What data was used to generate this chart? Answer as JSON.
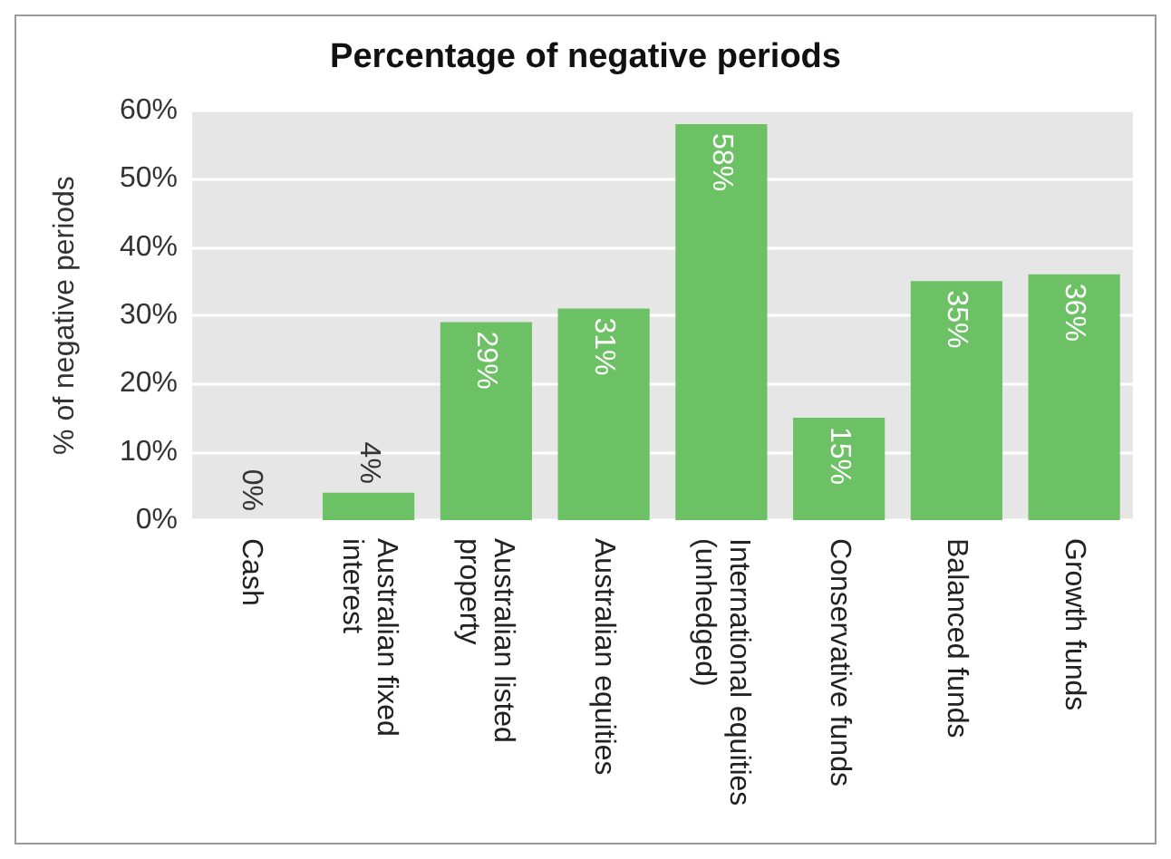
{
  "chart_data": {
    "type": "bar",
    "title": "Percentage of negative periods",
    "ylabel": "% of negative periods",
    "categories": [
      "Cash",
      "Australian fixed interest",
      "Australian listed property",
      "Australian equities",
      "International equities (unhedged)",
      "Conservative funds",
      "Balanced funds",
      "Growth funds"
    ],
    "values": [
      0,
      4,
      29,
      31,
      58,
      15,
      35,
      36
    ],
    "value_labels": [
      "0%",
      "4%",
      "29%",
      "31%",
      "58%",
      "15%",
      "35%",
      "36%"
    ],
    "color": "#6cc164",
    "ylim": [
      0,
      60
    ],
    "yticks": [
      {
        "value": 0,
        "label": "0%"
      },
      {
        "value": 10,
        "label": "10%"
      },
      {
        "value": 20,
        "label": "20%"
      },
      {
        "value": 30,
        "label": "30%"
      },
      {
        "value": 40,
        "label": "40%"
      },
      {
        "value": 50,
        "label": "50%"
      },
      {
        "value": 60,
        "label": "60%"
      }
    ],
    "grid": "y"
  }
}
